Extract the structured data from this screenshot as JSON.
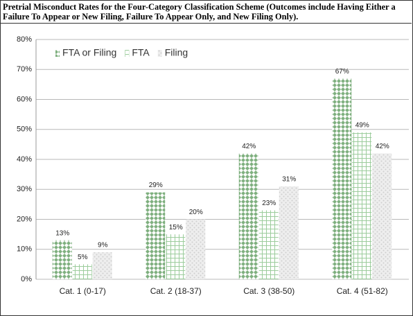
{
  "chart_data": {
    "type": "bar",
    "title": "Pretrial Misconduct Rates for the Four-Category Classification Scheme (Outcomes include Having Either a Failure To Appear or New Filing, Failure To Appear Only, and New Filing Only).",
    "categories": [
      "Cat. 1 (0-17)",
      "Cat. 2 (18-37)",
      "Cat. 3 (38-50)",
      "Cat. 4 (51-82)"
    ],
    "series": [
      {
        "name": "FTA or Filing",
        "color": "#7fb07f",
        "values": [
          13,
          29,
          42,
          67
        ],
        "value_labels": [
          "13%",
          "29%",
          "42%",
          "67%"
        ]
      },
      {
        "name": "FTA",
        "color": "#9ccc9c",
        "values": [
          5,
          15,
          23,
          49
        ],
        "value_labels": [
          "5%",
          "15%",
          "23%",
          "49%"
        ]
      },
      {
        "name": "Filing",
        "color": "#cfcfcf",
        "values": [
          9,
          20,
          31,
          42
        ],
        "value_labels": [
          "9%",
          "20%",
          "31%",
          "42%"
        ]
      }
    ],
    "ylim": [
      0,
      80
    ],
    "yticks": [
      {
        "value": 0,
        "label": "0%"
      },
      {
        "value": 10,
        "label": "10%"
      },
      {
        "value": 20,
        "label": "20%"
      },
      {
        "value": 30,
        "label": "30%"
      },
      {
        "value": 40,
        "label": "40%"
      },
      {
        "value": 50,
        "label": "50%"
      },
      {
        "value": 60,
        "label": "60%"
      },
      {
        "value": 70,
        "label": "70%"
      },
      {
        "value": 80,
        "label": "80%"
      }
    ],
    "grid": true,
    "legend": "top-left"
  }
}
